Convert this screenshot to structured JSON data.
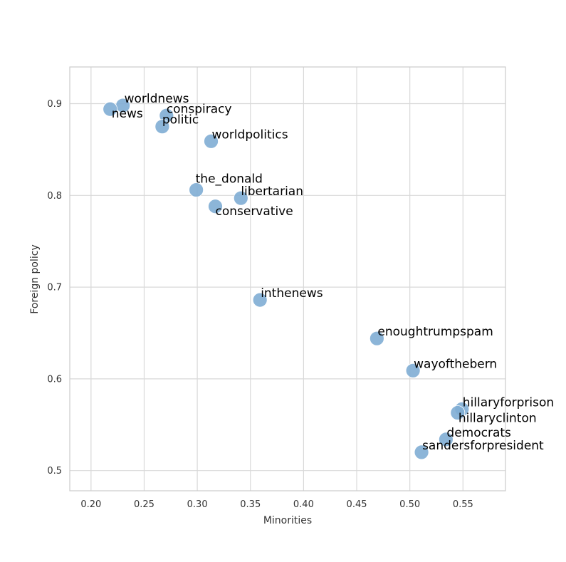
{
  "chart_data": {
    "type": "scatter",
    "xlabel": "Minorities",
    "ylabel": "Foreign policy",
    "xlim": [
      0.18,
      0.59
    ],
    "ylim": [
      0.478,
      0.94
    ],
    "x_ticks": [
      0.2,
      0.25,
      0.3,
      0.35,
      0.4,
      0.45,
      0.5,
      0.55
    ],
    "x_tick_labels": [
      "0.20",
      "0.25",
      "0.30",
      "0.35",
      "0.40",
      "0.45",
      "0.50",
      "0.55"
    ],
    "y_ticks": [
      0.5,
      0.6,
      0.7,
      0.8,
      0.9
    ],
    "y_tick_labels": [
      "0.5",
      "0.6",
      "0.7",
      "0.8",
      "0.9"
    ],
    "grid": true,
    "marker_color": "#7fadd4",
    "points": [
      {
        "label": "worldnews",
        "x": 0.23,
        "y": 0.898
      },
      {
        "label": "news",
        "x": 0.218,
        "y": 0.894
      },
      {
        "label": "conspiracy",
        "x": 0.271,
        "y": 0.887
      },
      {
        "label": "politic",
        "x": 0.267,
        "y": 0.875
      },
      {
        "label": "worldpolitics",
        "x": 0.313,
        "y": 0.859
      },
      {
        "label": "the_donald",
        "x": 0.299,
        "y": 0.806
      },
      {
        "label": "libertarian",
        "x": 0.341,
        "y": 0.797
      },
      {
        "label": "conservative",
        "x": 0.317,
        "y": 0.788
      },
      {
        "label": "inthenews",
        "x": 0.359,
        "y": 0.686
      },
      {
        "label": "enoughtrumpspam",
        "x": 0.469,
        "y": 0.644
      },
      {
        "label": "wayofthebern",
        "x": 0.503,
        "y": 0.609
      },
      {
        "label": "hillaryforprison",
        "x": 0.549,
        "y": 0.567
      },
      {
        "label": "hillaryclinton",
        "x": 0.545,
        "y": 0.563
      },
      {
        "label": "democrats",
        "x": 0.534,
        "y": 0.534
      },
      {
        "label": "sandersforpresident",
        "x": 0.511,
        "y": 0.52
      }
    ]
  }
}
